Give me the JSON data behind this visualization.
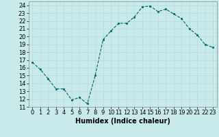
{
  "x": [
    0,
    1,
    2,
    3,
    4,
    5,
    6,
    7,
    8,
    9,
    10,
    11,
    12,
    13,
    14,
    15,
    16,
    17,
    18,
    19,
    20,
    21,
    22,
    23
  ],
  "y": [
    16.7,
    15.8,
    14.6,
    13.3,
    13.3,
    11.9,
    12.2,
    11.4,
    15.0,
    19.6,
    20.7,
    21.7,
    21.7,
    22.5,
    23.8,
    23.9,
    23.2,
    23.5,
    22.9,
    22.3,
    21.0,
    20.2,
    19.0,
    18.6
  ],
  "xlabel": "Humidex (Indice chaleur)",
  "ylabel": "",
  "title": "",
  "bg_color": "#c8eaea",
  "line_color": "#006666",
  "marker_color": "#006666",
  "grid_color": "#b8d8d8",
  "ylim": [
    11,
    24.5
  ],
  "xlim": [
    -0.5,
    23.5
  ],
  "yticks": [
    11,
    12,
    13,
    14,
    15,
    16,
    17,
    18,
    19,
    20,
    21,
    22,
    23,
    24
  ],
  "xticks": [
    0,
    1,
    2,
    3,
    4,
    5,
    6,
    7,
    8,
    9,
    10,
    11,
    12,
    13,
    14,
    15,
    16,
    17,
    18,
    19,
    20,
    21,
    22,
    23
  ],
  "tick_fontsize": 6,
  "xlabel_fontsize": 7
}
